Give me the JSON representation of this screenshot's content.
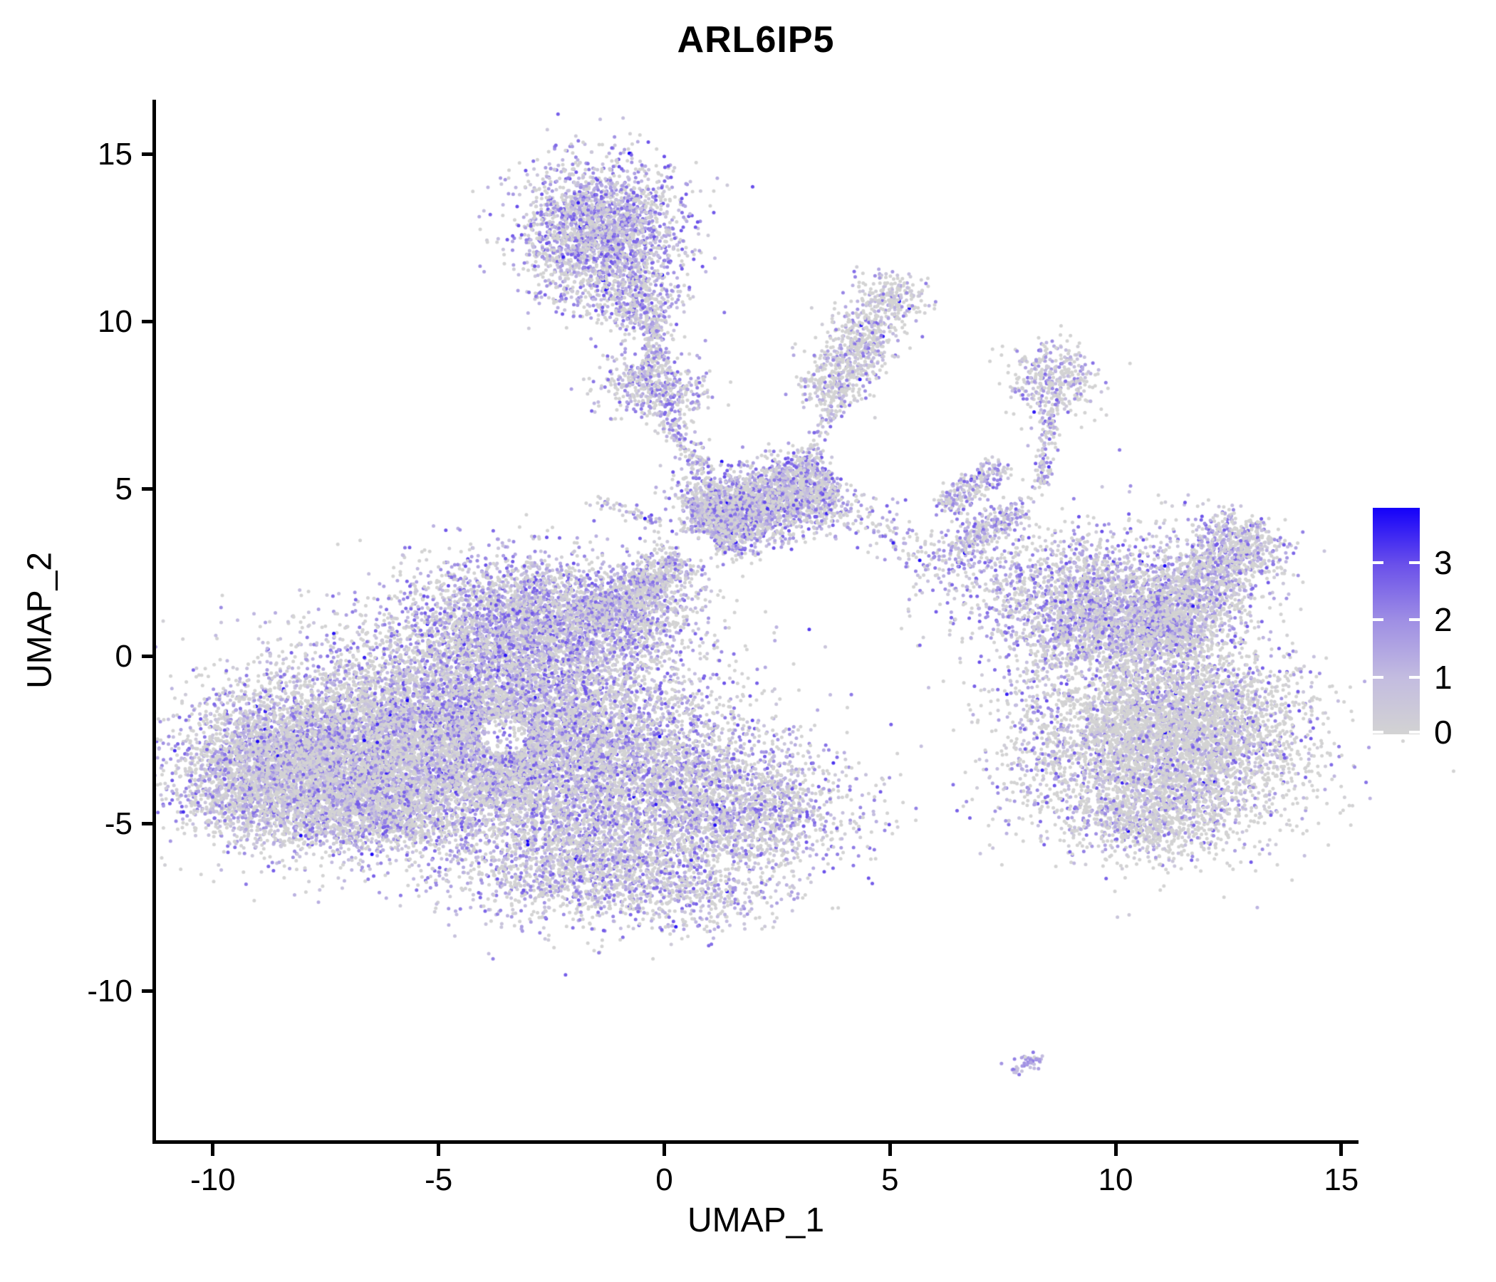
{
  "figure": {
    "title": "ARL6IP5",
    "background": "#ffffff",
    "axis_color": "#000000",
    "text_color": "#000000"
  },
  "chart_data": {
    "type": "scatter",
    "title": "ARL6IP5",
    "xlabel": "UMAP_1",
    "ylabel": "UMAP_2",
    "xlim": [
      -11.3,
      15.35
    ],
    "ylim": [
      -14.5,
      16.63
    ],
    "x_ticks": [
      -10,
      -5,
      0,
      5,
      10,
      15
    ],
    "y_ticks": [
      15,
      10,
      5,
      0,
      -5,
      -10
    ],
    "grid": false,
    "point_radius_px": 2.5,
    "seed": 42,
    "legend": {
      "position": "right",
      "ticks": [
        0,
        1,
        2,
        3
      ],
      "max_value": 3.96,
      "color_stops": [
        "#d3d3d3",
        "#c3bce0",
        "#9f8fe4",
        "#6a50ea",
        "#1400fa"
      ]
    },
    "rare_high": {
      "prob": 0.0035,
      "min": 3.2,
      "range": 0.8
    },
    "holes": [
      {
        "x": -3.55,
        "y": -2.35,
        "r": 0.55,
        "reject": 0.82
      },
      {
        "x": 0.75,
        "y": 3.3,
        "r": 0.4,
        "reject": 0.8
      },
      {
        "x": 9.3,
        "y": -0.6,
        "r": 0.5,
        "reject": 0.6
      }
    ],
    "clusters": [
      {
        "name": "left-body-core",
        "kind": "blob",
        "cx": -4.6,
        "cy": -2.3,
        "sx": 2.0,
        "sy": 1.7,
        "n": 8500,
        "p0": 0.38,
        "pow": 1.35,
        "vmax": 3.0
      },
      {
        "name": "left-body-west-lobe",
        "kind": "blob",
        "cx": -7.9,
        "cy": -3.2,
        "sx": 1.4,
        "sy": 1.2,
        "n": 3800,
        "p0": 0.4,
        "pow": 1.4,
        "vmax": 2.9
      },
      {
        "name": "left-body-far-west",
        "kind": "blob",
        "cx": -9.2,
        "cy": -3.6,
        "sx": 0.7,
        "sy": 0.9,
        "n": 900,
        "p0": 0.42,
        "pow": 1.4,
        "vmax": 2.8
      },
      {
        "name": "left-body-north-peak",
        "kind": "blob",
        "cx": -3.1,
        "cy": 1.0,
        "sx": 1.25,
        "sy": 1.0,
        "n": 2600,
        "p0": 0.28,
        "pow": 1.1,
        "vmax": 3.0
      },
      {
        "name": "left-body-east-lobe",
        "kind": "blob",
        "cx": -1.2,
        "cy": -3.2,
        "sx": 1.7,
        "sy": 1.6,
        "n": 3800,
        "p0": 0.36,
        "pow": 1.3,
        "vmax": 3.0
      },
      {
        "name": "left-body-south-tail",
        "kind": "blob",
        "cx": -1.6,
        "cy": -6.3,
        "sx": 1.5,
        "sy": 0.85,
        "n": 1600,
        "p0": 0.38,
        "pow": 1.3,
        "vmax": 2.9
      },
      {
        "name": "left-body-east-tip",
        "kind": "blob",
        "cx": 1.7,
        "cy": -4.6,
        "sx": 1.3,
        "sy": 0.95,
        "n": 1600,
        "p0": 0.38,
        "pow": 1.3,
        "vmax": 2.9
      },
      {
        "name": "left-body-neck",
        "kind": "blob",
        "cx": -0.7,
        "cy": 1.1,
        "sx": 0.8,
        "sy": 0.8,
        "n": 700,
        "p0": 0.34,
        "pow": 1.2,
        "vmax": 2.8
      },
      {
        "name": "left-body-southwest-edge",
        "kind": "blob",
        "cx": -6.6,
        "cy": -4.7,
        "sx": 1.1,
        "sy": 0.55,
        "n": 800,
        "p0": 0.4,
        "pow": 1.4,
        "vmax": 2.8
      },
      {
        "name": "top-cluster",
        "kind": "blob",
        "cx": -1.4,
        "cy": 12.7,
        "sx": 0.85,
        "sy": 1.05,
        "n": 2500,
        "p0": 0.3,
        "pow": 1.1,
        "vmax": 3.0
      },
      {
        "name": "top-cluster-south-lobe",
        "kind": "blob",
        "cx": -0.6,
        "cy": 10.6,
        "sx": 0.45,
        "sy": 0.5,
        "n": 350,
        "p0": 0.32,
        "pow": 1.1,
        "vmax": 2.9
      },
      {
        "name": "chain-top-to-bead",
        "kind": "band",
        "x1": -0.25,
        "y1": 10.2,
        "x2": -0.2,
        "y2": 8.9,
        "w": 0.15,
        "n": 120,
        "p0": 0.32,
        "pow": 1.0,
        "vmax": 2.6
      },
      {
        "name": "bead-cluster",
        "kind": "blob",
        "cx": -0.25,
        "cy": 8.05,
        "sx": 0.55,
        "sy": 0.5,
        "n": 520,
        "p0": 0.32,
        "pow": 1.1,
        "vmax": 2.8
      },
      {
        "name": "chain-bead-to-junction",
        "kind": "band",
        "x1": 0.0,
        "y1": 7.3,
        "x2": 0.85,
        "y2": 5.4,
        "w": 0.18,
        "n": 130,
        "p0": 0.35,
        "pow": 1.0,
        "vmax": 2.6
      },
      {
        "name": "bridge-band",
        "kind": "band",
        "x1": 0.8,
        "y1": 3.9,
        "x2": 3.7,
        "y2": 5.2,
        "w": 0.55,
        "n": 2300,
        "p0": 0.34,
        "pow": 1.2,
        "vmax": 3.0
      },
      {
        "name": "bridge-knot",
        "kind": "blob",
        "cx": 1.1,
        "cy": 4.4,
        "sx": 0.5,
        "sy": 0.6,
        "n": 500,
        "p0": 0.32,
        "pow": 1.2,
        "vmax": 3.0
      },
      {
        "name": "junction-left-arm",
        "kind": "band",
        "x1": -1.7,
        "y1": 1.0,
        "x2": 0.4,
        "y2": 2.9,
        "w": 0.35,
        "n": 800,
        "p0": 0.36,
        "pow": 1.2,
        "vmax": 2.8
      },
      {
        "name": "thin-chain-west",
        "kind": "band",
        "x1": -1.6,
        "y1": 4.7,
        "x2": -0.1,
        "y2": 4.0,
        "w": 0.12,
        "n": 55,
        "p0": 0.4,
        "pow": 1.0,
        "vmax": 2.4
      },
      {
        "name": "chain-bridge-to-arm",
        "kind": "band",
        "x1": 3.0,
        "y1": 5.5,
        "x2": 3.8,
        "y2": 7.5,
        "w": 0.15,
        "n": 80,
        "p0": 0.35,
        "pow": 1.0,
        "vmax": 2.7
      },
      {
        "name": "sparse-trail-east",
        "kind": "band",
        "x1": 3.8,
        "y1": 4.6,
        "x2": 6.0,
        "y2": 2.8,
        "w": 0.35,
        "n": 130,
        "p0": 0.4,
        "pow": 1.1,
        "vmax": 2.7
      },
      {
        "name": "northeast-arm",
        "kind": "band",
        "x1": 3.5,
        "y1": 7.6,
        "x2": 5.2,
        "y2": 11.2,
        "w": 0.4,
        "n": 900,
        "p0": 0.52,
        "pow": 1.5,
        "vmax": 2.7
      },
      {
        "name": "right-spike-upper",
        "kind": "band",
        "x1": 6.2,
        "y1": 4.5,
        "x2": 7.5,
        "y2": 5.7,
        "w": 0.18,
        "n": 230,
        "p0": 0.3,
        "pow": 1.0,
        "vmax": 2.8
      },
      {
        "name": "right-spike-lower",
        "kind": "band",
        "x1": 6.5,
        "y1": 3.2,
        "x2": 7.9,
        "y2": 4.5,
        "w": 0.2,
        "n": 220,
        "p0": 0.3,
        "pow": 1.0,
        "vmax": 2.8
      },
      {
        "name": "right-spike-scatter",
        "kind": "blob",
        "cx": 7.0,
        "cy": 2.9,
        "sx": 0.8,
        "sy": 0.9,
        "n": 330,
        "p0": 0.34,
        "pow": 1.1,
        "vmax": 2.8
      },
      {
        "name": "antenna-bulb",
        "kind": "blob",
        "cx": 8.6,
        "cy": 8.3,
        "sx": 0.5,
        "sy": 0.55,
        "n": 380,
        "p0": 0.45,
        "pow": 1.3,
        "vmax": 2.6
      },
      {
        "name": "antenna-stalk",
        "kind": "band",
        "x1": 8.55,
        "y1": 7.5,
        "x2": 8.35,
        "y2": 5.0,
        "w": 0.13,
        "n": 120,
        "p0": 0.36,
        "pow": 1.0,
        "vmax": 2.8
      },
      {
        "name": "right-body-upper",
        "kind": "blob",
        "cx": 9.6,
        "cy": 1.3,
        "sx": 1.2,
        "sy": 1.1,
        "n": 2600,
        "p0": 0.36,
        "pow": 1.25,
        "vmax": 3.0
      },
      {
        "name": "right-arm",
        "kind": "band",
        "x1": 10.8,
        "y1": 0.4,
        "x2": 13.1,
        "y2": 3.9,
        "w": 0.6,
        "n": 1800,
        "p0": 0.38,
        "pow": 1.3,
        "vmax": 2.9
      },
      {
        "name": "right-body-lower",
        "kind": "blob",
        "cx": 11.2,
        "cy": -2.4,
        "sx": 1.45,
        "sy": 1.45,
        "n": 5200,
        "p0": 0.56,
        "pow": 1.7,
        "vmax": 3.0
      },
      {
        "name": "right-body-south-lobe",
        "kind": "blob",
        "cx": 10.6,
        "cy": -5.0,
        "sx": 0.8,
        "sy": 0.55,
        "n": 500,
        "p0": 0.52,
        "pow": 1.6,
        "vmax": 2.8
      },
      {
        "name": "right-body-west-scatter",
        "kind": "blob",
        "cx": 8.3,
        "cy": -3.0,
        "sx": 0.75,
        "sy": 1.3,
        "n": 280,
        "p0": 0.46,
        "pow": 1.3,
        "vmax": 2.8
      },
      {
        "name": "south-sparse-tail",
        "kind": "blob",
        "cx": 0.9,
        "cy": -7.3,
        "sx": 0.9,
        "sy": 0.5,
        "n": 260,
        "p0": 0.4,
        "pow": 1.3,
        "vmax": 2.7
      },
      {
        "name": "tiny-bottom-cluster",
        "kind": "band",
        "x1": 7.72,
        "y1": -12.45,
        "x2": 8.35,
        "y2": -11.95,
        "w": 0.09,
        "n": 42,
        "p0": 0.12,
        "pow": 0.8,
        "vmax": 2.4,
        "base": 0.6
      },
      {
        "name": "tiny-bottom-outlier",
        "kind": "blob",
        "cx": 7.45,
        "cy": -12.2,
        "sx": 0.02,
        "sy": 0.02,
        "n": 1,
        "p0": 0,
        "pow": 1.0,
        "vmax": 2.0,
        "base": 1.6
      }
    ]
  }
}
